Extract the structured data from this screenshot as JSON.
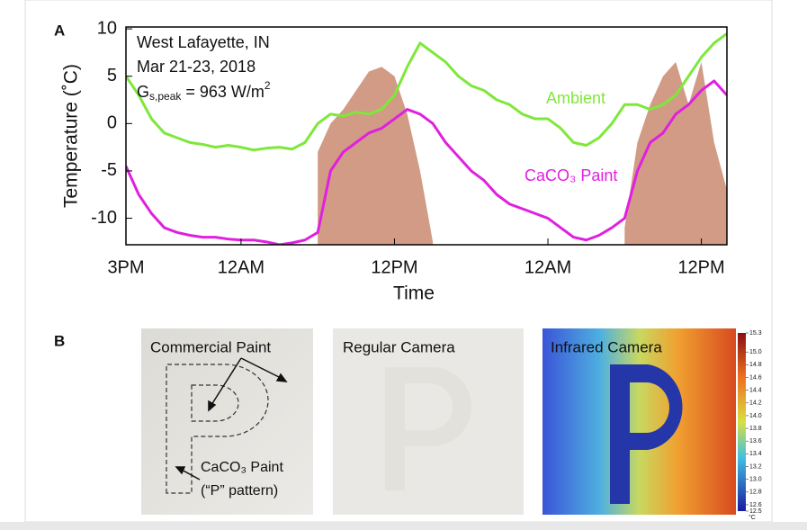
{
  "figure": {
    "panel_a_label": "A",
    "panel_b_label": "B"
  },
  "chart_data": {
    "type": "line",
    "y_label": "Temperature (˚C)",
    "x_label": "Time",
    "annotations": [
      "West Lafayette, IN",
      "Mar 21-23, 2018",
      {
        "text": "G",
        "sub": "s,peak",
        "after": " = 963 W/m",
        "sup": "2"
      }
    ],
    "x": [
      0,
      1,
      2,
      3,
      4,
      5,
      6,
      7,
      8,
      9,
      10,
      11,
      12,
      13,
      14,
      15,
      16,
      17,
      18,
      19,
      20,
      21,
      22,
      23,
      24,
      25,
      26,
      27,
      28,
      29,
      30,
      31,
      32,
      33,
      34,
      35,
      36,
      37,
      38,
      39,
      40,
      41,
      42,
      43,
      44,
      45,
      46,
      47
    ],
    "xlim": [
      0,
      47
    ],
    "xticks": [
      {
        "value": 0,
        "label": "3PM"
      },
      {
        "value": 9,
        "label": "12AM"
      },
      {
        "value": 21,
        "label": "12PM"
      },
      {
        "value": 33,
        "label": "12AM"
      },
      {
        "value": 45,
        "label": "12PM"
      }
    ],
    "ylim": [
      -12.8,
      10.2
    ],
    "yticks": [
      -10,
      -5,
      0,
      5,
      10
    ],
    "series": [
      {
        "name": "Ambient",
        "color": "#7ee83a",
        "values": [
          5,
          3,
          0.5,
          -1,
          -1.5,
          -2,
          -2.2,
          -2.5,
          -2.3,
          -2.5,
          -2.8,
          -2.6,
          -2.5,
          -2.7,
          -2,
          0,
          1,
          0.8,
          1.2,
          1,
          1.5,
          3,
          6,
          8.5,
          7.5,
          6.5,
          5,
          4,
          3.5,
          2.5,
          2,
          1,
          0.5,
          0.5,
          -0.5,
          -2,
          -2.3,
          -1.5,
          0,
          2,
          2,
          1.5,
          2,
          3,
          5,
          7,
          8.5,
          9.5
        ]
      },
      {
        "name": "CaCO₃ Paint",
        "color": "#e020e0",
        "values": [
          -4.5,
          -7.5,
          -9.5,
          -11,
          -11.5,
          -11.8,
          -12,
          -12,
          -12.2,
          -12.3,
          -12.3,
          -12.5,
          -12.8,
          -12.6,
          -12.3,
          -11.5,
          -5,
          -3,
          -2,
          -1,
          -0.5,
          0.5,
          1.5,
          1,
          0,
          -2,
          -3.5,
          -5,
          -6,
          -7.5,
          -8.5,
          -9,
          -9.5,
          -10,
          -11,
          -12,
          -12.3,
          -11.8,
          -11,
          -10,
          -5,
          -2,
          -1,
          1,
          2,
          3.5,
          4.5,
          3
        ]
      },
      {
        "kind": "area",
        "color": "#c98a70",
        "values": [
          null,
          null,
          null,
          null,
          null,
          null,
          null,
          null,
          null,
          null,
          null,
          null,
          null,
          null,
          null,
          -3,
          0,
          1.5,
          3.5,
          5.5,
          6,
          5,
          1,
          -5,
          -12.5,
          null,
          null,
          null,
          null,
          null,
          null,
          null,
          null,
          null,
          null,
          null,
          null,
          null,
          null,
          -11,
          -2,
          2,
          5,
          6.5,
          2,
          6.5,
          -2,
          -7
        ]
      }
    ]
  },
  "panel_b": {
    "photo_1": {
      "label_top": "Commercial Paint",
      "label_bottom_1": "CaCO₃ Paint",
      "label_bottom_2": "(“P” pattern)"
    },
    "photo_2": {
      "title": "Regular Camera"
    },
    "photo_3": {
      "title": "Infrared Camera"
    },
    "colorbar": {
      "lim": [
        12.5,
        15.3
      ],
      "unit": "°C",
      "ticks": [
        {
          "value": 15.3,
          "label": "15.3"
        },
        {
          "value": 15.0,
          "label": "15.0"
        },
        {
          "value": 14.8,
          "label": "14.8"
        },
        {
          "value": 14.6,
          "label": "14.6"
        },
        {
          "value": 14.4,
          "label": "14.4"
        },
        {
          "value": 14.2,
          "label": "14.2"
        },
        {
          "value": 14.0,
          "label": "14.0"
        },
        {
          "value": 13.8,
          "label": "13.8"
        },
        {
          "value": 13.6,
          "label": "13.6"
        },
        {
          "value": 13.4,
          "label": "13.4"
        },
        {
          "value": 13.2,
          "label": "13.2"
        },
        {
          "value": 13.0,
          "label": "13.0"
        },
        {
          "value": 12.8,
          "label": "12.8"
        },
        {
          "value": 12.6,
          "label": "12.6"
        },
        {
          "value": 12.5,
          "label": "12.5"
        }
      ]
    }
  }
}
